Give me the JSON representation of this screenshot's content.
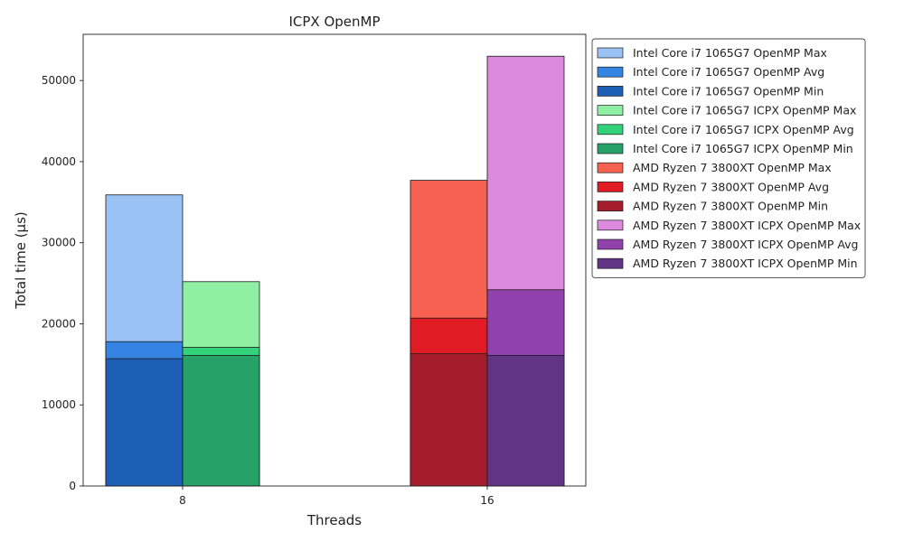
{
  "chart_data": {
    "type": "bar",
    "title": "ICPX OpenMP",
    "xlabel": "Threads",
    "ylabel": "Total time (µs)",
    "categories": [
      "8",
      "16"
    ],
    "ylim": [
      0,
      55700
    ],
    "yticks": [
      0,
      10000,
      20000,
      30000,
      40000,
      50000
    ],
    "legend_position": "outside-right-top",
    "layering": "Max, Avg and Min bars of each group are overlaid at the same x position",
    "groups": [
      {
        "category": "8",
        "slot": "left",
        "series": [
          {
            "name": "Intel Core i7 1065G7 OpenMP Max",
            "value": 35900,
            "color": "#9bc2f5"
          },
          {
            "name": "Intel Core i7 1065G7 OpenMP Avg",
            "value": 17800,
            "color": "#3584e4"
          },
          {
            "name": "Intel Core i7 1065G7 OpenMP Min",
            "value": 15700,
            "color": "#1c5fb5"
          }
        ]
      },
      {
        "category": "8",
        "slot": "right",
        "series": [
          {
            "name": "Intel Core i7 1065G7 ICPX OpenMP Max",
            "value": 25200,
            "color": "#8ff0a4"
          },
          {
            "name": "Intel Core i7 1065G7 ICPX OpenMP Avg",
            "value": 17100,
            "color": "#33d17a"
          },
          {
            "name": "Intel Core i7 1065G7 ICPX OpenMP Min",
            "value": 16100,
            "color": "#26a269"
          }
        ]
      },
      {
        "category": "16",
        "slot": "left",
        "series": [
          {
            "name": "AMD Ryzen 7 3800XT OpenMP Max",
            "value": 37700,
            "color": "#f66151"
          },
          {
            "name": "AMD Ryzen 7 3800XT OpenMP Avg",
            "value": 20700,
            "color": "#e01b24"
          },
          {
            "name": "AMD Ryzen 7 3800XT OpenMP Min",
            "value": 16300,
            "color": "#a51d2d"
          }
        ]
      },
      {
        "category": "16",
        "slot": "right",
        "series": [
          {
            "name": "AMD Ryzen 7 3800XT ICPX OpenMP Max",
            "value": 53000,
            "color": "#dc8add"
          },
          {
            "name": "AMD Ryzen 7 3800XT ICPX OpenMP Avg",
            "value": 24200,
            "color": "#9141ac"
          },
          {
            "name": "AMD Ryzen 7 3800XT ICPX OpenMP Min",
            "value": 16100,
            "color": "#613583"
          }
        ]
      }
    ]
  }
}
